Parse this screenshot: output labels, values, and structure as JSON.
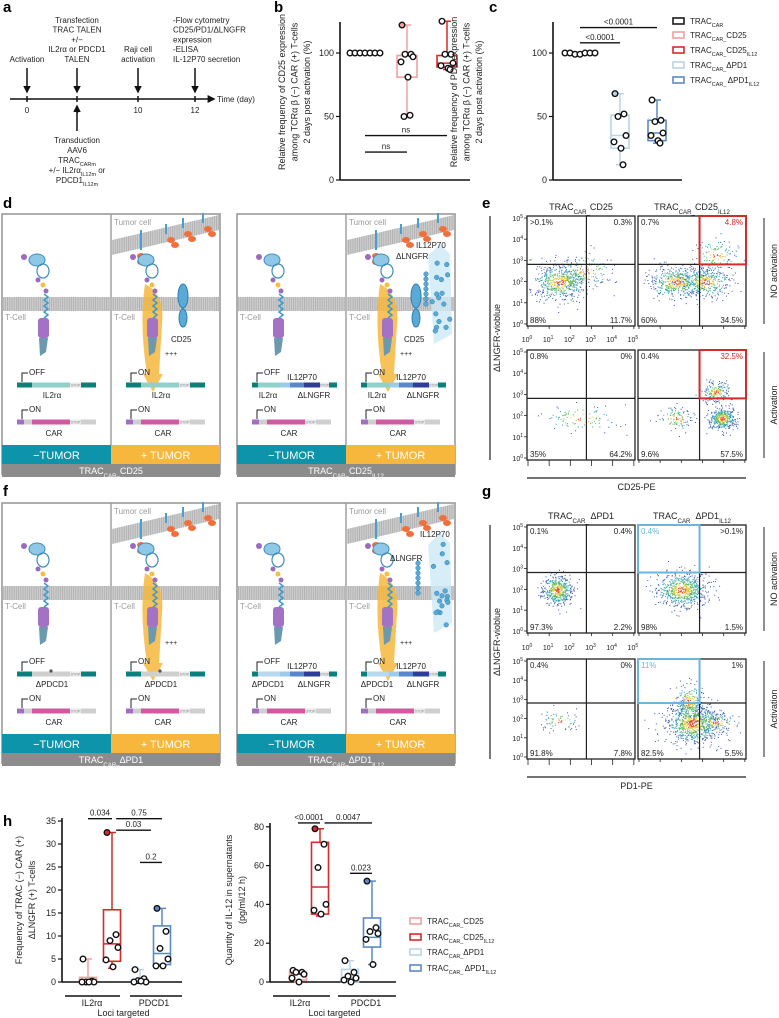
{
  "panel_labels": {
    "a": "a",
    "b": "b",
    "c": "c",
    "d": "d",
    "e": "e",
    "f": "f",
    "g": "g",
    "h": "h"
  },
  "colors": {
    "trac_car": "#1a1a1a",
    "cd25": "#f2a0a0",
    "cd25_il12": "#d42a2a",
    "dpd1": "#b9d3ea",
    "dpd1_il12": "#5a8ac6",
    "teal": "#0e94aa",
    "orange": "#f6b73c",
    "gray": "#8a8a8a"
  },
  "a": {
    "axis_label": "Time (day)",
    "events": [
      {
        "day": "0",
        "lines": [
          "Activation"
        ]
      },
      {
        "day": "4",
        "lines": [
          "Transfection",
          "TRAC TALEN",
          "+/−",
          "IL2rα or PDCD1",
          "TALEN"
        ]
      },
      {
        "day": "10",
        "lines": [
          "Raji cell",
          "activation"
        ]
      },
      {
        "day": "12",
        "lines": [
          "-Flow cytometry",
          "CD25/PD1/ΔLNGFR",
          "expression",
          "-ELISA",
          "IL-12P70 secretion"
        ]
      }
    ],
    "transduction": [
      [
        {
          "t": "Transduction"
        }
      ],
      [
        {
          "t": "AAV6"
        }
      ],
      [
        {
          "t": "TRAC"
        },
        {
          "t": "CARm",
          "s": 1
        }
      ],
      [
        {
          "t": "+/− IL2rα"
        },
        {
          "t": "IL12m",
          "s": 1
        },
        {
          "t": " or"
        }
      ],
      [
        {
          "t": "PDCD1"
        },
        {
          "t": "IL12m",
          "s": 1
        }
      ]
    ]
  },
  "legend_bc": [
    [
      {
        "t": "TRAC"
      },
      {
        "t": "CAR",
        "s": 1
      }
    ],
    [
      {
        "t": "TRAC"
      },
      {
        "t": "CAR_",
        "s": 1
      },
      {
        "t": "CD25"
      }
    ],
    [
      {
        "t": "TRAC"
      },
      {
        "t": "CAR_",
        "s": 1
      },
      {
        "t": "CD25"
      },
      {
        "t": "IL12",
        "s": 1
      }
    ],
    [
      {
        "t": "TRAC"
      },
      {
        "t": "CAR_",
        "s": 1
      },
      {
        "t": "ΔPD1"
      }
    ],
    [
      {
        "t": "TRAC"
      },
      {
        "t": "CAR_ ",
        "s": 1
      },
      {
        "t": "ΔPD1"
      },
      {
        "t": "IL12",
        "s": 1
      }
    ]
  ],
  "legend_h": [
    [
      {
        "t": "TRAC"
      },
      {
        "t": "CAR_",
        "s": 1
      },
      {
        "t": "CD25"
      }
    ],
    [
      {
        "t": "TRAC"
      },
      {
        "t": "CAR_",
        "s": 1
      },
      {
        "t": "CD25"
      },
      {
        "t": "IL12",
        "s": 1
      }
    ],
    [
      {
        "t": "TRAC"
      },
      {
        "t": "CAR_",
        "s": 1
      },
      {
        "t": "ΔPD1"
      }
    ],
    [
      {
        "t": "TRAC"
      },
      {
        "t": "CAR_ ",
        "s": 1
      },
      {
        "t": "ΔPD1"
      },
      {
        "t": "IL12",
        "s": 1
      }
    ]
  ],
  "chart_data": [
    {
      "id": "b",
      "type": "box",
      "ylabel": [
        "Relative frequency of CD25 expression",
        "among TCRα β (−) CAR (+) T-cells",
        "2 days post activation (%)"
      ],
      "yticks": [
        "0",
        "50",
        "100"
      ],
      "ytick_values": [
        0,
        50,
        100
      ],
      "ylim": [
        0,
        125
      ],
      "groups": [
        {
          "name": "TRAC_CAR",
          "color": "#1a1a1a",
          "values": [
            100,
            100,
            100,
            100,
            100,
            100,
            100
          ],
          "box": {
            "min": 100,
            "q1": 100,
            "median": 100,
            "q3": 100,
            "max": 100
          }
        },
        {
          "name": "TRAC_CAR_CD25",
          "color": "#f2a0a0",
          "values": [
            122,
            99,
            99,
            97,
            93,
            81,
            51,
            50
          ],
          "box": {
            "min": 50,
            "q1": 81,
            "median": 98,
            "q3": 98,
            "max": 122
          }
        },
        {
          "name": "TRAC_CAR_CD25_IL12",
          "color": "#d42a2a",
          "values": [
            125,
            99,
            99,
            92,
            90,
            88,
            87
          ],
          "box": {
            "min": 87,
            "q1": 89,
            "median": 92,
            "q3": 98,
            "max": 125
          }
        }
      ],
      "annotations": [
        {
          "label": "ns",
          "from": 0,
          "to": 2,
          "y": 35
        },
        {
          "label": "ns",
          "from": 0,
          "to": 1,
          "y": 22
        }
      ]
    },
    {
      "id": "c",
      "type": "box",
      "ylabel": [
        "Relative frequency of PD1 expression",
        "among TCRα β (−) CAR (+) T-cells",
        "2 days post activation (%)"
      ],
      "yticks": [
        "0",
        "50",
        "100"
      ],
      "ytick_values": [
        0,
        50,
        100
      ],
      "ylim": [
        0,
        125
      ],
      "groups": [
        {
          "name": "TRAC_CAR",
          "color": "#1a1a1a",
          "values": [
            100,
            100,
            99,
            99,
            100,
            100,
            100
          ],
          "box": {
            "min": 99,
            "q1": 99,
            "median": 100,
            "q3": 100,
            "max": 100
          }
        },
        {
          "name": "TRAC_CAR_ΔPD1",
          "color": "#b9d3ea",
          "values": [
            68,
            52,
            50,
            35,
            30,
            25,
            12
          ],
          "box": {
            "min": 12,
            "q1": 25,
            "median": 35,
            "q3": 51,
            "max": 68
          }
        },
        {
          "name": "TRAC_CAR_ΔPD1_IL12",
          "color": "#5a8ac6",
          "values": [
            63,
            47,
            46,
            37,
            35,
            31,
            29
          ],
          "box": {
            "min": 29,
            "q1": 31,
            "median": 37,
            "q3": 47,
            "max": 63
          }
        }
      ],
      "annotations": [
        {
          "label": "<0.0001",
          "from": 0,
          "to": 2,
          "y": 120
        },
        {
          "label": "<0.0001",
          "from": 0,
          "to": 1,
          "y": 108
        }
      ]
    },
    {
      "id": "h_left",
      "type": "box",
      "ylabel": [
        "Frequency of TRAC (−) CAR (+)",
        "ΔLNGFR (+) T-cells"
      ],
      "xlabel": "Loci targeted",
      "categories": [
        "IL2rα",
        "PDCD1"
      ],
      "yticks": [
        "0",
        "5",
        "10",
        "15",
        "20",
        "25",
        "30",
        "35"
      ],
      "ytick_values": [
        0,
        5,
        10,
        15,
        20,
        25,
        30,
        35
      ],
      "ylim": [
        0,
        35
      ],
      "groups": [
        {
          "name": "TRAC_CAR_CD25",
          "category": "IL2rα",
          "color": "#f2a0a0",
          "values": [
            5,
            0.2,
            0,
            0,
            0,
            0
          ],
          "box": {
            "min": 0,
            "q1": 0,
            "median": 0.2,
            "q3": 1,
            "max": 5
          }
        },
        {
          "name": "TRAC_CAR_CD25_IL12",
          "category": "IL2rα",
          "color": "#d42a2a",
          "values": [
            32.5,
            10.3,
            9,
            7.5,
            4.8,
            3.3
          ],
          "box": {
            "min": 3,
            "q1": 4.5,
            "median": 8.3,
            "q3": 15.7,
            "max": 32.5
          }
        },
        {
          "name": "TRAC_CAR_ΔPD1",
          "category": "PDCD1",
          "color": "#b9d3ea",
          "values": [
            2.7,
            0.7,
            0.3,
            0,
            0,
            0.2
          ],
          "box": {
            "min": 0,
            "q1": 0,
            "median": 0.2,
            "q3": 0.5,
            "max": 2.7
          }
        },
        {
          "name": "TRAC_CAR_ΔPD1_IL12",
          "category": "PDCD1",
          "color": "#5a8ac6",
          "values": [
            16,
            11,
            7.3,
            5,
            3.5,
            3.5
          ],
          "box": {
            "min": 3.5,
            "q1": 3.8,
            "median": 6.2,
            "q3": 12.2,
            "max": 16
          }
        }
      ],
      "annotations": [
        {
          "label": "0.034",
          "from": 0,
          "to": 1,
          "y": 35.5
        },
        {
          "label": "0.75",
          "from": 1.15,
          "to": 3.2,
          "y": 35.5
        },
        {
          "label": "0.03",
          "from": 1.15,
          "to": 2.5,
          "y": 33
        },
        {
          "label": "0.2",
          "from": 2,
          "to": 3.3,
          "y": 26
        }
      ]
    },
    {
      "id": "h_right",
      "type": "box",
      "ylabel": [
        "Quantity of IL-12 in supernatants",
        "(pg/ml/12 h)"
      ],
      "xlabel": "Loci targeted",
      "categories": [
        "IL2rα",
        "PDCD1"
      ],
      "yticks": [
        "0",
        "20",
        "40",
        "60",
        "80"
      ],
      "ytick_values": [
        0,
        20,
        40,
        60,
        80
      ],
      "ylim": [
        0,
        80
      ],
      "groups": [
        {
          "name": "TRAC_CAR_CD25",
          "category": "IL2rα",
          "color": "#f2a0a0",
          "values": [
            6,
            5,
            5,
            4,
            2,
            0
          ],
          "box": {
            "min": 0,
            "q1": 1,
            "median": 4,
            "q3": 5,
            "max": 6
          }
        },
        {
          "name": "TRAC_CAR_CD25_IL12",
          "category": "IL2rα",
          "color": "#d42a2a",
          "values": [
            79,
            71,
            59,
            40,
            37,
            35
          ],
          "box": {
            "min": 34,
            "q1": 35,
            "median": 49,
            "q3": 72,
            "max": 79
          }
        },
        {
          "name": "TRAC_CAR_ΔPD1",
          "category": "PDCD1",
          "color": "#b9d3ea",
          "values": [
            11,
            5,
            3,
            2,
            1,
            0
          ],
          "box": {
            "min": 0,
            "q1": 0,
            "median": 2,
            "q3": 6.5,
            "max": 11
          }
        },
        {
          "name": "TRAC_CAR_ΔPD1_IL12",
          "category": "PDCD1",
          "color": "#5a8ac6",
          "values": [
            52,
            28,
            26,
            25,
            22,
            9
          ],
          "box": {
            "min": 9,
            "q1": 18,
            "median": 23,
            "q3": 33,
            "max": 52
          }
        }
      ],
      "annotations": [
        {
          "label": "<0.0001",
          "from": -0.2,
          "to": 1,
          "y": 82
        },
        {
          "label": "0.0047",
          "from": 1.15,
          "to": 3.1,
          "y": 82
        },
        {
          "label": "0.023",
          "from": 2,
          "to": 3.3,
          "y": 56
        }
      ]
    }
  ],
  "d": {
    "tumor_cell": "Tumor cell",
    "t_cell": "T-Cell",
    "cd25": "CD25",
    "plus": "+++",
    "off": "OFF",
    "on": "ON",
    "gene": "IL2rα",
    "car": "CAR",
    "il12": "IL12P70",
    "lngfr": "ΔLNGFR",
    "stop": "STOP",
    "minus_tumor": "−TUMOR",
    "plus_tumor": "+ TUMOR",
    "footers": [
      [
        {
          "t": "TRAC"
        },
        {
          "t": "CAR–",
          "s": 1
        },
        {
          "t": "CD25"
        }
      ],
      [
        {
          "t": "TRAC"
        },
        {
          "t": "CAR–",
          "s": 1
        },
        {
          "t": "CD25"
        },
        {
          "t": "IL12",
          "s": 1
        }
      ]
    ]
  },
  "f": {
    "tumor_cell": "Tumor cell",
    "t_cell": "T-Cell",
    "cd25": "",
    "plus": "+++",
    "off": "OFF",
    "on": "ON",
    "gene": "ΔPDCD1",
    "car": "CAR",
    "il12": "IL12P70",
    "lngfr": "ΔLNGFR",
    "stop": "STOP",
    "minus_tumor": "−TUMOR",
    "plus_tumor": "+ TUMOR",
    "footers": [
      [
        {
          "t": "TRAC"
        },
        {
          "t": "CAR–",
          "s": 1
        },
        {
          "t": "ΔPD1"
        }
      ],
      [
        {
          "t": "TRAC"
        },
        {
          "t": "CAR–",
          "s": 1
        },
        {
          "t": "ΔPD1"
        },
        {
          "t": "IL12",
          "s": 1
        }
      ]
    ]
  },
  "e": {
    "columns": [
      [
        {
          "t": "TRAC"
        },
        {
          "t": "CAR_",
          "s": 1
        },
        {
          "t": "CD25"
        }
      ],
      [
        {
          "t": "TRAC"
        },
        {
          "t": "CAR_",
          "s": 1
        },
        {
          "t": "CD25"
        },
        {
          "t": "IL12",
          "s": 1
        }
      ]
    ],
    "rows": [
      "NO activation",
      "Activation"
    ],
    "xlabel": "CD25-PE",
    "ylabel": "ΔLNGFR-vioblue",
    "tick_base": "10",
    "tick_exps": [
      "0",
      "1",
      "2",
      "3",
      "4",
      "5"
    ],
    "highlight_quadrant": "upper-right",
    "highlight_color": "#d42a2a",
    "plots": [
      [
        {
          "ul": ">0.1%",
          "ur": "0.3%",
          "ll": "88%",
          "lr": "11.7%"
        },
        {
          "ul": "0.7%",
          "ur": "4.8%",
          "ll": "60%",
          "lr": "34.5%"
        }
      ],
      [
        {
          "ul": "0.8%",
          "ur": "0%",
          "ll": "35%",
          "lr": "64.2%"
        },
        {
          "ul": "0.4%",
          "ur": "32.5%",
          "ll": "9.6%",
          "lr": "57.5%"
        }
      ]
    ]
  },
  "g": {
    "columns": [
      [
        {
          "t": "TRAC"
        },
        {
          "t": "CAR_ ",
          "s": 1
        },
        {
          "t": "ΔPD1"
        }
      ],
      [
        {
          "t": "TRAC"
        },
        {
          "t": "CAR_ ",
          "s": 1
        },
        {
          "t": "ΔPD1"
        },
        {
          "t": "IL12",
          "s": 1
        }
      ]
    ],
    "rows": [
      "NO activation",
      "Activation"
    ],
    "xlabel": "PD1-PE",
    "ylabel": "ΔLNGFR-vioblue",
    "tick_base": "10",
    "tick_exps": [
      "0",
      "1",
      "2",
      "3",
      "4",
      "5"
    ],
    "highlight_quadrant": "upper-left",
    "highlight_color": "#6cb4dc",
    "plots": [
      [
        {
          "ul": "0.1%",
          "ur": "0.4%",
          "ll": "97.3%",
          "lr": "2.2%"
        },
        {
          "ul": "0.4%",
          "ur": ">0.1%",
          "ll": "98%",
          "lr": "1.5%"
        }
      ],
      [
        {
          "ul": "0.4%",
          "ur": "0%",
          "ll": "91.8%",
          "lr": "7.8%"
        },
        {
          "ul": "11%",
          "ur": "1%",
          "ll": "82.5%",
          "lr": "5.5%"
        }
      ]
    ]
  }
}
